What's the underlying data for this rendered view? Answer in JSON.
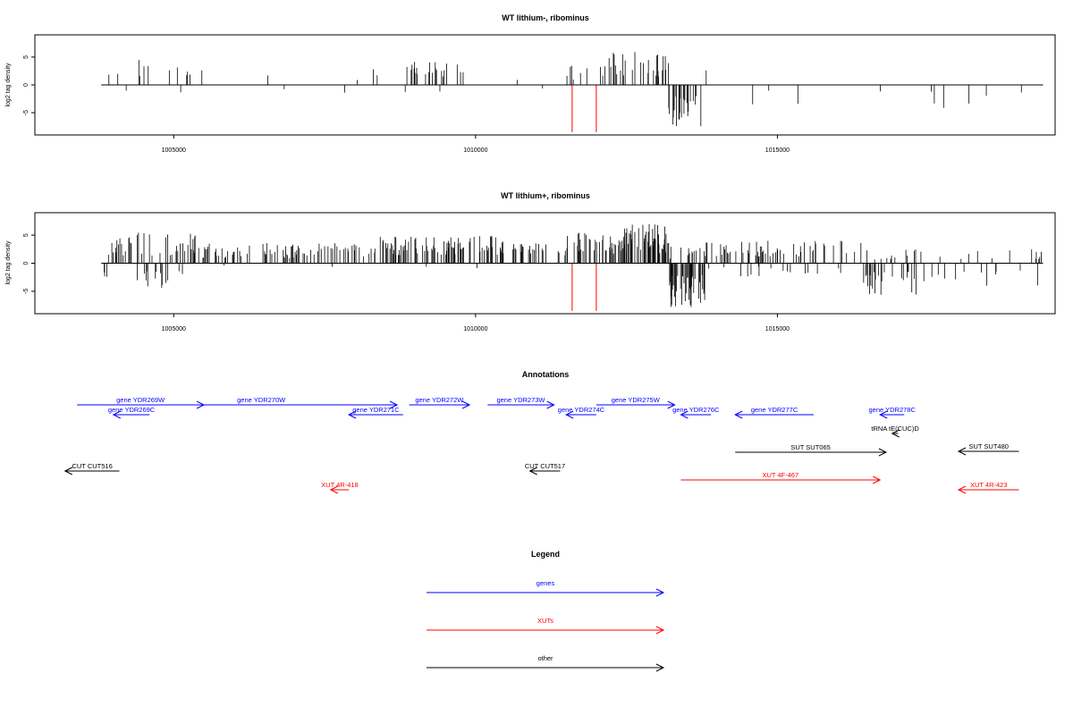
{
  "chart_data": [
    {
      "type": "bar",
      "title": "WT lithium-, ribominus",
      "ylabel": "log2 tag density",
      "xlim": [
        1002700,
        1019600
      ],
      "ylim": [
        -9,
        9
      ],
      "x_ticks": [
        {
          "value": 1005000,
          "label": "1005000"
        },
        {
          "value": 1010000,
          "label": "1010000"
        },
        {
          "value": 1015000,
          "label": "1015000"
        }
      ],
      "y_ticks": [
        {
          "value": -5,
          "label": "-5"
        },
        {
          "value": 0,
          "label": "0"
        },
        {
          "value": 5,
          "label": "5"
        }
      ],
      "baseline": {
        "from": 1003800,
        "to": 1019400
      },
      "highlight_lines": [
        {
          "x": 1011600,
          "value": -8.5,
          "color": "#ff0000"
        },
        {
          "x": 1012000,
          "value": -8.5,
          "color": "#ff0000"
        }
      ],
      "track": {
        "seed": 11,
        "regions": [
          [
            1003800,
            1005500,
            0.035,
            4.5,
            0.012,
            3.5
          ],
          [
            1005500,
            1008800,
            0.01,
            3.2,
            0.002,
            1.5
          ],
          [
            1008800,
            1009800,
            0.12,
            5.0,
            0.01,
            1.5
          ],
          [
            1009800,
            1011500,
            0.008,
            3.0,
            0.004,
            2.0
          ],
          [
            1011500,
            1012100,
            0.06,
            3.5,
            0.0,
            0.0
          ],
          [
            1012100,
            1013200,
            0.15,
            6.0,
            0.0,
            0.0
          ],
          [
            1013200,
            1013750,
            0.02,
            2.0,
            0.35,
            7.5
          ],
          [
            1013750,
            1016500,
            0.008,
            3.5,
            0.008,
            3.5
          ],
          [
            1016500,
            1019400,
            0.004,
            2.0,
            0.01,
            4.5
          ]
        ]
      }
    },
    {
      "type": "bar",
      "title": "WT lithium+, ribominus",
      "ylabel": "log2 tag density",
      "xlim": [
        1002700,
        1019600
      ],
      "ylim": [
        -9,
        9
      ],
      "x_ticks": [
        {
          "value": 1005000,
          "label": "1005000"
        },
        {
          "value": 1010000,
          "label": "1010000"
        },
        {
          "value": 1015000,
          "label": "1015000"
        }
      ],
      "y_ticks": [
        {
          "value": -5,
          "label": "-5"
        },
        {
          "value": 0,
          "label": "0"
        },
        {
          "value": 5,
          "label": "5"
        }
      ],
      "baseline": {
        "from": 1003800,
        "to": 1019400
      },
      "highlight_lines": [
        {
          "x": 1011600,
          "value": -8.5,
          "color": "#ff0000"
        },
        {
          "x": 1012000,
          "value": -8.5,
          "color": "#ff0000"
        }
      ],
      "track": {
        "seed": 29,
        "regions": [
          [
            1003800,
            1005400,
            0.18,
            5.5,
            0.06,
            4.5
          ],
          [
            1005400,
            1008400,
            0.16,
            3.6,
            0.01,
            1.5
          ],
          [
            1008400,
            1010500,
            0.3,
            5.0,
            0.01,
            1.5
          ],
          [
            1010500,
            1011500,
            0.15,
            3.6,
            0.01,
            1.5
          ],
          [
            1011500,
            1012400,
            0.3,
            5.5,
            0.0,
            0.0
          ],
          [
            1012400,
            1013200,
            0.4,
            7.0,
            0.01,
            1.5
          ],
          [
            1013200,
            1013800,
            0.08,
            3.0,
            0.5,
            8.0
          ],
          [
            1013800,
            1016400,
            0.16,
            4.0,
            0.06,
            2.5
          ],
          [
            1016400,
            1017300,
            0.06,
            2.5,
            0.2,
            6.0
          ],
          [
            1017300,
            1019400,
            0.05,
            2.5,
            0.05,
            4.0
          ]
        ]
      }
    }
  ],
  "annotations": {
    "title": "Annotations",
    "xlim": [
      1002700,
      1019600
    ],
    "features": [
      {
        "label": "gene YDR269W",
        "color": "#0000ff",
        "start": 1003400,
        "end": 1005500,
        "row": 0,
        "strand": "+"
      },
      {
        "label": "gene YDR269C",
        "color": "#0000ff",
        "start": 1004000,
        "end": 1004600,
        "row": 1,
        "strand": "-"
      },
      {
        "label": "gene YDR270W",
        "color": "#0000ff",
        "start": 1004200,
        "end": 1008700,
        "row": 0,
        "strand": "+"
      },
      {
        "label": "gene YDR271C",
        "color": "#0000ff",
        "start": 1007900,
        "end": 1008800,
        "row": 1,
        "strand": "-"
      },
      {
        "label": "gene YDR272W",
        "color": "#0000ff",
        "start": 1008900,
        "end": 1009900,
        "row": 0,
        "strand": "+"
      },
      {
        "label": "gene YDR273W",
        "color": "#0000ff",
        "start": 1010200,
        "end": 1011300,
        "row": 0,
        "strand": "+"
      },
      {
        "label": "gene YDR274C",
        "color": "#0000ff",
        "start": 1011500,
        "end": 1012000,
        "row": 1,
        "strand": "-"
      },
      {
        "label": "gene YDR275W",
        "color": "#0000ff",
        "start": 1012000,
        "end": 1013300,
        "row": 0,
        "strand": "+"
      },
      {
        "label": "gene YDR276C",
        "color": "#0000ff",
        "start": 1013400,
        "end": 1013900,
        "row": 1,
        "strand": "-"
      },
      {
        "label": "gene YDR277C",
        "color": "#0000ff",
        "start": 1014300,
        "end": 1015600,
        "row": 1,
        "strand": "-"
      },
      {
        "label": "gene YDR278C",
        "color": "#0000ff",
        "start": 1016700,
        "end": 1017100,
        "row": 1,
        "strand": "-"
      },
      {
        "label": "tRNA tE(CUC)D",
        "color": "#000000",
        "start": 1016900,
        "end": 1017000,
        "row": 2,
        "strand": "-"
      },
      {
        "label": "SUT SUT065",
        "color": "#000000",
        "start": 1014300,
        "end": 1016800,
        "row": 3,
        "strand": "+"
      },
      {
        "label": "SUT SUT480",
        "color": "#000000",
        "start": 1018000,
        "end": 1019000,
        "row": 4,
        "strand": "-"
      },
      {
        "label": "CUT CUT516",
        "color": "#000000",
        "start": 1003200,
        "end": 1004100,
        "row": 5,
        "strand": "-"
      },
      {
        "label": "CUT CUT517",
        "color": "#000000",
        "start": 1010900,
        "end": 1011400,
        "row": 5,
        "strand": "-"
      },
      {
        "label": "XUT 4F-467",
        "color": "#ff0000",
        "start": 1013400,
        "end": 1016700,
        "row": 6,
        "strand": "+"
      },
      {
        "label": "XUT 4R-418",
        "color": "#ff0000",
        "start": 1007600,
        "end": 1007900,
        "row": 7,
        "strand": "-"
      },
      {
        "label": "XUT 4R-423",
        "color": "#ff0000",
        "start": 1018000,
        "end": 1019000,
        "row": 7,
        "strand": "-"
      }
    ]
  },
  "legend": {
    "title": "Legend",
    "items": [
      {
        "label": "genes",
        "color": "#0000ff"
      },
      {
        "label": "XUTs",
        "color": "#ff0000"
      },
      {
        "label": "other",
        "color": "#000000"
      }
    ]
  }
}
